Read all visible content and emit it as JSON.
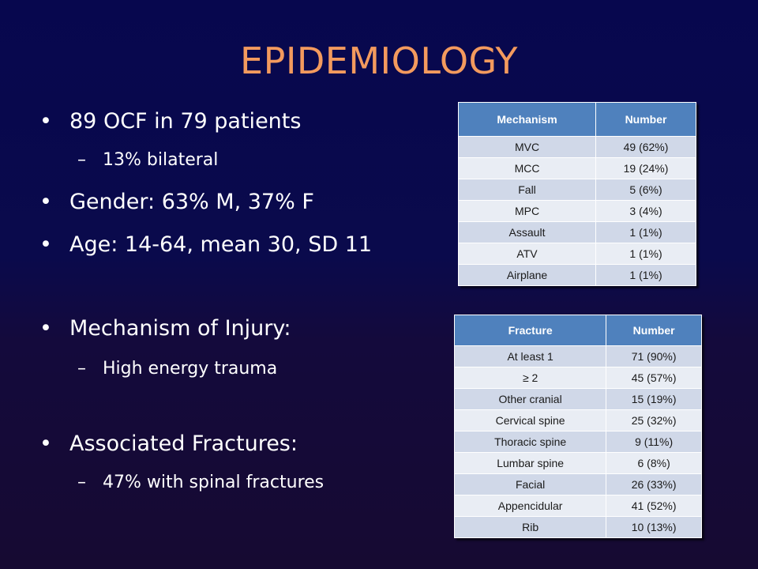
{
  "title": "EPIDEMIOLOGY",
  "bullets": {
    "b1": "89 OCF in 79 patients",
    "b1_sub": "13% bilateral",
    "b2": "Gender: 63% M, 37% F",
    "b3": "Age: 14-64, mean 30, SD 11",
    "b4": "Mechanism of Injury:",
    "b4_sub": "High energy trauma",
    "b5": "Associated Fractures:",
    "b5_sub": "47% with spinal fractures"
  },
  "bullet_glyph": "•",
  "dash_glyph": "–",
  "mechanism_table": {
    "headers": [
      "Mechanism",
      "Number"
    ],
    "rows": [
      [
        "MVC",
        "49 (62%)"
      ],
      [
        "MCC",
        "19 (24%)"
      ],
      [
        "Fall",
        "5 (6%)"
      ],
      [
        "MPC",
        "3 (4%)"
      ],
      [
        "Assault",
        "1 (1%)"
      ],
      [
        "ATV",
        "1 (1%)"
      ],
      [
        "Airplane",
        "1 (1%)"
      ]
    ]
  },
  "fracture_table": {
    "headers": [
      "Fracture",
      "Number"
    ],
    "rows": [
      [
        "At least 1",
        "71 (90%)"
      ],
      [
        "≥ 2",
        "45 (57%)"
      ],
      [
        "Other cranial",
        "15 (19%)"
      ],
      [
        "Cervical spine",
        "25 (32%)"
      ],
      [
        "Thoracic spine",
        "9 (11%)"
      ],
      [
        "Lumbar spine",
        "6 (8%)"
      ],
      [
        "Facial",
        "26 (33%)"
      ],
      [
        "Appencidular",
        "41 (52%)"
      ],
      [
        "Rib",
        "10 (13%)"
      ]
    ]
  },
  "colors": {
    "title": "#f39a5e",
    "table_header": "#4f81bd",
    "row_dark": "#d0d8e8",
    "row_light": "#e9edf4"
  }
}
